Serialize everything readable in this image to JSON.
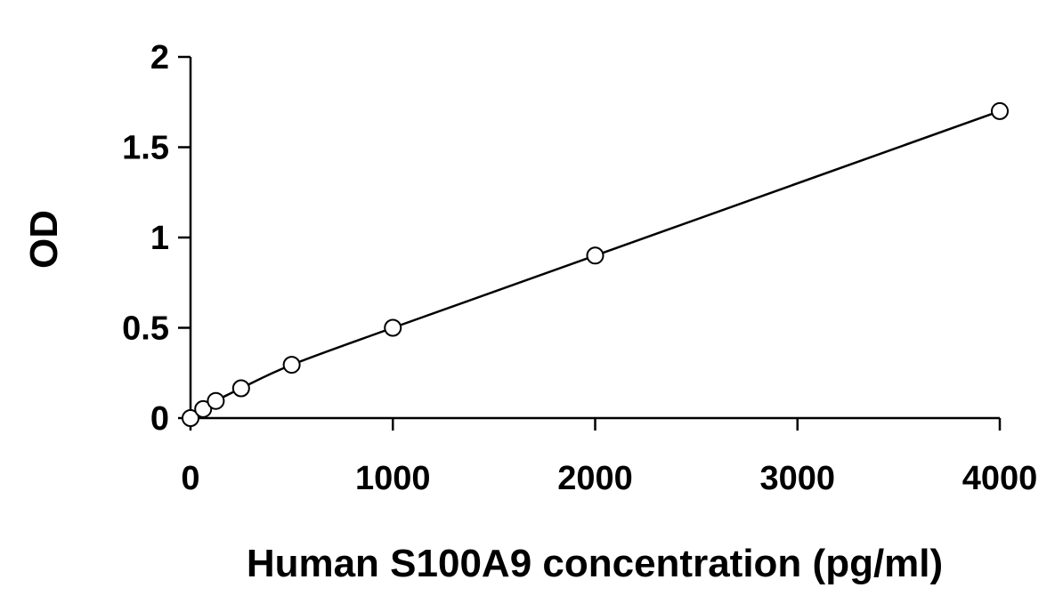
{
  "chart_data": {
    "type": "scatter",
    "title": "",
    "xlabel": "Human S100A9 concentration (pg/ml)",
    "ylabel": "OD",
    "xlim": [
      0,
      4000
    ],
    "ylim": [
      0,
      2
    ],
    "x_ticks": [
      "0",
      "1000",
      "2000",
      "3000",
      "4000"
    ],
    "y_ticks": [
      "0",
      "0.5",
      "1",
      "1.5",
      "2"
    ],
    "grid": false,
    "series": [
      {
        "x": [
          0,
          62.5,
          125,
          250,
          500,
          1000,
          2000,
          4000
        ],
        "y": [
          0.0,
          0.05,
          0.095,
          0.165,
          0.295,
          0.5,
          0.9,
          1.7
        ],
        "marker": "open-circle",
        "line": "smooth fit"
      }
    ],
    "colors": {
      "line": "#000000",
      "marker_stroke": "#000000",
      "marker_fill": "#ffffff"
    }
  }
}
